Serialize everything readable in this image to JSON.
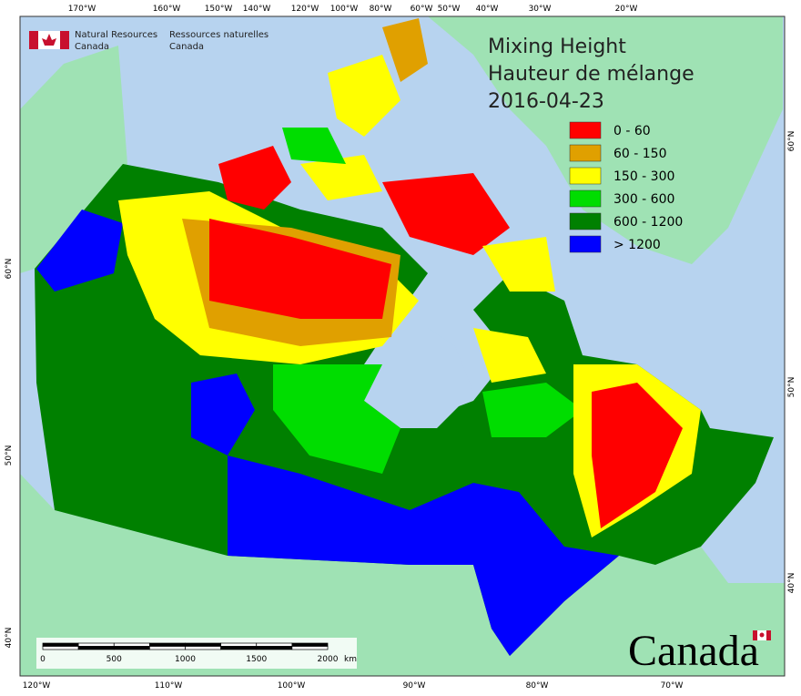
{
  "header": {
    "org_en": [
      "Natural Resources",
      "Canada"
    ],
    "org_fr": [
      "Ressources naturelles",
      "Canada"
    ]
  },
  "title": [
    "Mixing Height",
    "Hauteur de mélange",
    "2016-04-23"
  ],
  "legend": [
    {
      "label": "0 - 60",
      "color": "#ff0000"
    },
    {
      "label": "60 - 150",
      "color": "#e0a000"
    },
    {
      "label": "150 - 300",
      "color": "#ffff00"
    },
    {
      "label": "300 - 600",
      "color": "#00dd00"
    },
    {
      "label": "600 - 1200",
      "color": "#008000"
    },
    {
      "label": "> 1200",
      "color": "#0000ff"
    }
  ],
  "top_labels": [
    "170°W",
    "160°W",
    "150°W",
    "140°W",
    "120°W",
    "100°W",
    "80°W",
    "60°W",
    "50°W",
    "40°W",
    "30°W",
    "20°W"
  ],
  "bottom_labels": [
    "120°W",
    "110°W",
    "100°W",
    "90°W",
    "80°W",
    "70°W"
  ],
  "left_labels": [
    "60°N",
    "50°N",
    "40°N"
  ],
  "right_labels": [
    "60°N",
    "50°N",
    "40°N"
  ],
  "scale_bar": {
    "ticks": [
      "0",
      "500",
      "1000",
      "1500",
      "2000"
    ],
    "unit": "km"
  },
  "wordmark": "Canada"
}
